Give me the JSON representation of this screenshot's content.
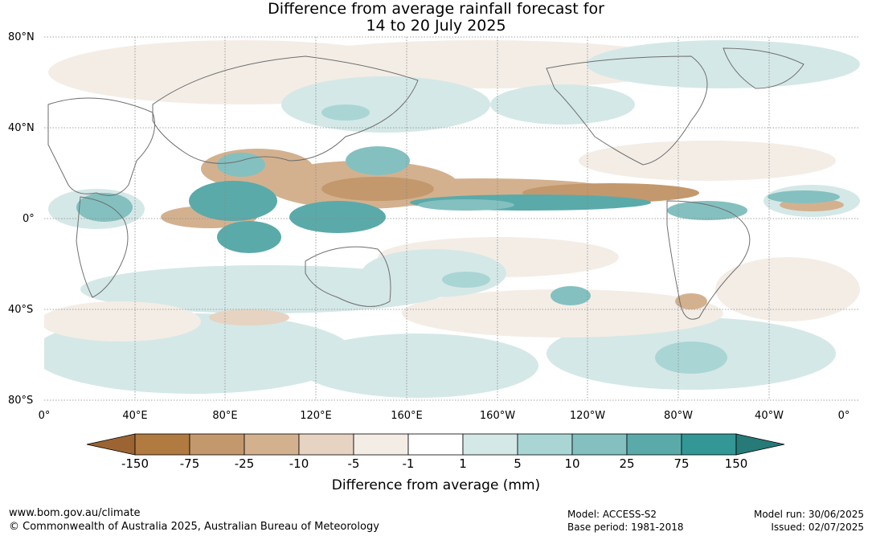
{
  "title": {
    "line1": "Difference from average rainfall forecast for",
    "line2": "14 to 20 July 2025"
  },
  "map": {
    "lat_labels": [
      "80°N",
      "40°N",
      "0°",
      "40°S",
      "80°S"
    ],
    "lon_labels": [
      "0°",
      "40°E",
      "80°E",
      "120°E",
      "160°E",
      "160°W",
      "120°W",
      "80°W",
      "40°W",
      "0°"
    ]
  },
  "colorbar": {
    "ticks": [
      "-150",
      "-75",
      "-25",
      "-10",
      "-5",
      "-1",
      "1",
      "5",
      "10",
      "25",
      "75",
      "150"
    ],
    "colors": [
      "#9c6432",
      "#b07a40",
      "#c3986c",
      "#d3b18f",
      "#e6d3c2",
      "#f3ede6",
      "#ffffff",
      "#d4e8e7",
      "#a9d5d5",
      "#84c0c0",
      "#5aaaaa",
      "#339795",
      "#267a78"
    ],
    "label": "Difference from average (mm)"
  },
  "footer": {
    "url": "www.bom.gov.au/climate",
    "copyright": "© Commonwealth of Australia 2025, Australian Bureau of Meteorology",
    "model": "Model: ACCESS-S2",
    "base_period": "Base period: 1981-2018",
    "model_run": "Model run: 30/06/2025",
    "issued": "Issued: 02/07/2025"
  }
}
